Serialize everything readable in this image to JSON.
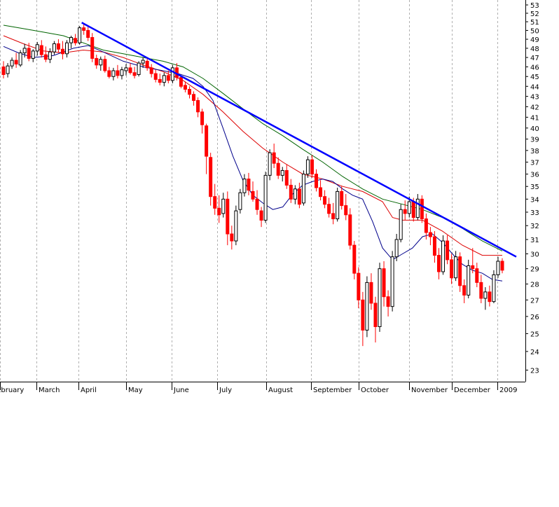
{
  "chart_data": {
    "type": "candlestick",
    "x_ticks": [
      "February",
      "March",
      "April",
      "May",
      "June",
      "July",
      "August",
      "September",
      "October",
      "November",
      "December",
      "2009"
    ],
    "y_ticks": [
      23,
      24,
      25,
      26,
      27,
      28,
      29,
      30,
      31,
      32,
      33,
      34,
      35,
      36,
      37,
      38,
      39,
      40,
      41,
      42,
      43,
      44,
      45,
      46,
      47,
      48,
      49,
      50,
      51,
      52,
      53
    ],
    "ylim": [
      22.4,
      53.6
    ],
    "y_scale": "log",
    "grid": "vertical dotted at month boundaries",
    "colors": {
      "up": "#000000",
      "down": "#ff0000",
      "trendline": "#0000ff",
      "ma_short": "#00008b",
      "ma_mid": "#dd0000",
      "ma_long": "#006400"
    },
    "candles": [
      [
        46.0,
        46.6,
        44.8,
        45.2
      ],
      [
        45.3,
        46.4,
        44.9,
        46.1
      ],
      [
        46.1,
        47.0,
        45.8,
        46.7
      ],
      [
        46.7,
        47.5,
        45.9,
        46.3
      ],
      [
        46.2,
        47.8,
        46.0,
        47.5
      ],
      [
        47.5,
        48.5,
        47.0,
        48.0
      ],
      [
        48.0,
        48.6,
        46.6,
        46.9
      ],
      [
        46.9,
        47.9,
        46.5,
        47.7
      ],
      [
        47.7,
        48.7,
        47.2,
        48.4
      ],
      [
        48.3,
        48.9,
        47.0,
        47.3
      ],
      [
        47.3,
        48.2,
        46.5,
        46.8
      ],
      [
        46.8,
        48.0,
        46.4,
        47.6
      ],
      [
        47.6,
        48.8,
        47.3,
        48.5
      ],
      [
        48.5,
        49.0,
        47.5,
        47.9
      ],
      [
        47.9,
        48.8,
        46.8,
        47.4
      ],
      [
        47.4,
        48.9,
        47.0,
        48.6
      ],
      [
        48.6,
        49.4,
        48.0,
        49.2
      ],
      [
        49.1,
        49.6,
        48.3,
        48.6
      ],
      [
        48.6,
        50.5,
        48.4,
        50.3
      ],
      [
        50.3,
        50.8,
        49.5,
        50.0
      ],
      [
        50.0,
        50.4,
        48.8,
        49.2
      ],
      [
        49.2,
        49.7,
        46.5,
        46.9
      ],
      [
        46.9,
        47.3,
        45.8,
        46.2
      ],
      [
        46.2,
        47.1,
        45.6,
        46.8
      ],
      [
        46.8,
        47.2,
        45.4,
        45.6
      ],
      [
        45.6,
        46.0,
        44.8,
        45.0
      ],
      [
        45.0,
        45.9,
        44.6,
        45.6
      ],
      [
        45.6,
        46.2,
        44.8,
        45.1
      ],
      [
        45.1,
        46.0,
        44.7,
        45.7
      ],
      [
        45.6,
        46.3,
        45.1,
        45.9
      ],
      [
        45.9,
        46.4,
        45.2,
        45.4
      ],
      [
        45.4,
        46.0,
        44.8,
        45.1
      ],
      [
        45.2,
        46.6,
        45.0,
        46.4
      ],
      [
        46.4,
        47.0,
        45.9,
        46.7
      ],
      [
        46.6,
        47.0,
        45.6,
        45.9
      ],
      [
        45.9,
        46.3,
        44.9,
        45.3
      ],
      [
        45.3,
        45.7,
        44.4,
        44.7
      ],
      [
        44.7,
        45.3,
        44.1,
        44.4
      ],
      [
        44.4,
        45.4,
        44.0,
        45.1
      ],
      [
        45.1,
        45.6,
        44.3,
        44.6
      ],
      [
        44.6,
        46.2,
        44.3,
        45.9
      ],
      [
        45.9,
        46.4,
        44.6,
        44.9
      ],
      [
        44.9,
        45.1,
        43.8,
        44.0
      ],
      [
        44.1,
        44.5,
        43.4,
        43.7
      ],
      [
        43.7,
        44.0,
        42.8,
        43.2
      ],
      [
        43.2,
        43.5,
        42.1,
        42.6
      ],
      [
        42.6,
        42.9,
        41.0,
        41.5
      ],
      [
        41.5,
        41.8,
        39.5,
        40.3
      ],
      [
        40.2,
        40.4,
        36.0,
        37.5
      ],
      [
        37.4,
        37.8,
        33.5,
        34.2
      ],
      [
        34.2,
        35.2,
        32.8,
        33.3
      ],
      [
        33.3,
        34.3,
        32.2,
        32.8
      ],
      [
        32.9,
        34.5,
        32.6,
        34.0
      ],
      [
        34.0,
        34.6,
        30.6,
        31.4
      ],
      [
        31.4,
        32.0,
        30.3,
        30.9
      ],
      [
        30.9,
        33.5,
        30.6,
        33.1
      ],
      [
        33.2,
        34.8,
        32.9,
        34.5
      ],
      [
        34.5,
        36.0,
        34.2,
        35.6
      ],
      [
        35.6,
        36.1,
        34.3,
        34.7
      ],
      [
        34.6,
        35.4,
        33.8,
        34.0
      ],
      [
        34.0,
        34.7,
        32.8,
        33.2
      ],
      [
        33.1,
        33.4,
        31.9,
        32.4
      ],
      [
        32.4,
        36.2,
        32.2,
        35.9
      ],
      [
        35.9,
        38.1,
        35.5,
        37.8
      ],
      [
        37.8,
        38.6,
        36.5,
        36.9
      ],
      [
        36.9,
        37.4,
        35.6,
        35.9
      ],
      [
        35.9,
        36.6,
        35.4,
        36.3
      ],
      [
        36.3,
        36.8,
        34.8,
        35.1
      ],
      [
        35.1,
        35.6,
        33.7,
        34.0
      ],
      [
        34.0,
        35.1,
        33.6,
        34.8
      ],
      [
        34.8,
        35.3,
        33.3,
        33.6
      ],
      [
        33.7,
        36.3,
        33.5,
        36.0
      ],
      [
        36.0,
        37.5,
        35.7,
        37.2
      ],
      [
        37.2,
        37.6,
        35.7,
        36.0
      ],
      [
        36.0,
        36.4,
        34.6,
        34.9
      ],
      [
        34.9,
        35.5,
        33.9,
        34.2
      ],
      [
        34.2,
        34.7,
        33.3,
        33.6
      ],
      [
        33.6,
        34.1,
        32.6,
        32.9
      ],
      [
        32.9,
        33.7,
        32.1,
        32.5
      ],
      [
        32.5,
        34.9,
        32.3,
        34.6
      ],
      [
        34.6,
        35.0,
        33.2,
        33.5
      ],
      [
        33.5,
        34.4,
        32.4,
        32.8
      ],
      [
        32.8,
        33.3,
        30.3,
        30.6
      ],
      [
        30.6,
        30.9,
        28.3,
        28.7
      ],
      [
        28.7,
        29.1,
        26.5,
        27.0
      ],
      [
        27.0,
        27.5,
        24.3,
        25.2
      ],
      [
        25.2,
        28.5,
        24.8,
        28.1
      ],
      [
        28.1,
        28.7,
        26.4,
        26.8
      ],
      [
        26.8,
        27.2,
        24.5,
        25.4
      ],
      [
        25.4,
        29.4,
        25.1,
        29.0
      ],
      [
        29.0,
        29.5,
        26.6,
        27.2
      ],
      [
        27.2,
        27.6,
        26.0,
        26.6
      ],
      [
        26.6,
        30.2,
        26.3,
        29.8
      ],
      [
        29.8,
        31.4,
        29.5,
        31.0
      ],
      [
        31.0,
        33.6,
        30.8,
        33.2
      ],
      [
        33.2,
        33.9,
        32.4,
        32.9
      ],
      [
        32.9,
        34.2,
        32.6,
        33.8
      ],
      [
        33.8,
        34.1,
        32.3,
        32.6
      ],
      [
        32.6,
        34.4,
        32.4,
        34.0
      ],
      [
        34.0,
        34.3,
        32.2,
        32.5
      ],
      [
        32.5,
        32.9,
        31.0,
        31.5
      ],
      [
        31.5,
        31.9,
        30.6,
        31.2
      ],
      [
        31.2,
        31.6,
        29.4,
        29.9
      ],
      [
        29.9,
        30.4,
        28.3,
        28.8
      ],
      [
        28.8,
        31.3,
        28.6,
        30.9
      ],
      [
        30.9,
        31.3,
        29.3,
        29.6
      ],
      [
        29.6,
        30.0,
        28.0,
        28.4
      ],
      [
        28.4,
        30.2,
        28.2,
        29.8
      ],
      [
        29.8,
        30.1,
        27.5,
        27.9
      ],
      [
        27.9,
        28.3,
        26.8,
        27.3
      ],
      [
        27.3,
        29.6,
        27.1,
        29.2
      ],
      [
        29.2,
        30.4,
        28.7,
        29.0
      ],
      [
        29.0,
        29.4,
        27.8,
        28.1
      ],
      [
        28.1,
        28.6,
        26.8,
        27.1
      ],
      [
        27.1,
        27.8,
        26.4,
        27.5
      ],
      [
        27.5,
        27.9,
        26.6,
        26.9
      ],
      [
        26.9,
        28.9,
        26.8,
        28.6
      ],
      [
        28.6,
        29.8,
        28.4,
        29.5
      ],
      [
        29.5,
        29.7,
        28.7,
        28.9
      ]
    ],
    "trendline": {
      "from": [
        50.9,
        0.1568
      ],
      "to": [
        29.8,
        1.0
      ]
    },
    "ma_short": [
      [
        0.0,
        48.2
      ],
      [
        0.03,
        47.5
      ],
      [
        0.06,
        47.0
      ],
      [
        0.1,
        47.2
      ],
      [
        0.14,
        48.0
      ],
      [
        0.17,
        48.3
      ],
      [
        0.2,
        47.6
      ],
      [
        0.24,
        46.6
      ],
      [
        0.28,
        46.0
      ],
      [
        0.32,
        45.6
      ],
      [
        0.35,
        45.3
      ],
      [
        0.38,
        44.8
      ],
      [
        0.4,
        44.0
      ],
      [
        0.42,
        42.6
      ],
      [
        0.44,
        40.0
      ],
      [
        0.46,
        37.5
      ],
      [
        0.48,
        35.5
      ],
      [
        0.5,
        34.3
      ],
      [
        0.52,
        33.7
      ],
      [
        0.54,
        33.2
      ],
      [
        0.56,
        33.4
      ],
      [
        0.58,
        34.4
      ],
      [
        0.6,
        35.1
      ],
      [
        0.62,
        35.4
      ],
      [
        0.64,
        35.6
      ],
      [
        0.66,
        35.4
      ],
      [
        0.68,
        34.8
      ],
      [
        0.7,
        34.3
      ],
      [
        0.72,
        34.0
      ],
      [
        0.74,
        32.3
      ],
      [
        0.76,
        30.4
      ],
      [
        0.78,
        29.6
      ],
      [
        0.8,
        30.0
      ],
      [
        0.82,
        30.4
      ],
      [
        0.84,
        31.2
      ],
      [
        0.86,
        31.4
      ],
      [
        0.88,
        30.8
      ],
      [
        0.9,
        30.0
      ],
      [
        0.92,
        29.3
      ],
      [
        0.94,
        28.9
      ],
      [
        0.96,
        28.7
      ],
      [
        0.98,
        28.3
      ],
      [
        1.0,
        28.2
      ]
    ],
    "ma_mid": [
      [
        0.0,
        49.4
      ],
      [
        0.04,
        48.5
      ],
      [
        0.08,
        47.7
      ],
      [
        0.12,
        47.5
      ],
      [
        0.16,
        47.8
      ],
      [
        0.2,
        47.6
      ],
      [
        0.24,
        47.0
      ],
      [
        0.28,
        46.2
      ],
      [
        0.32,
        45.5
      ],
      [
        0.36,
        44.6
      ],
      [
        0.4,
        43.2
      ],
      [
        0.44,
        41.5
      ],
      [
        0.48,
        39.7
      ],
      [
        0.52,
        38.2
      ],
      [
        0.56,
        37.0
      ],
      [
        0.6,
        36.0
      ],
      [
        0.64,
        35.6
      ],
      [
        0.68,
        35.0
      ],
      [
        0.72,
        34.6
      ],
      [
        0.76,
        33.8
      ],
      [
        0.78,
        32.6
      ],
      [
        0.8,
        32.4
      ],
      [
        0.84,
        32.4
      ],
      [
        0.88,
        31.6
      ],
      [
        0.92,
        30.6
      ],
      [
        0.96,
        29.9
      ],
      [
        1.0,
        29.9
      ]
    ],
    "ma_long": [
      [
        0.0,
        50.6
      ],
      [
        0.04,
        50.2
      ],
      [
        0.08,
        49.8
      ],
      [
        0.12,
        49.4
      ],
      [
        0.16,
        48.6
      ],
      [
        0.2,
        47.8
      ],
      [
        0.24,
        47.4
      ],
      [
        0.28,
        47.0
      ],
      [
        0.32,
        46.6
      ],
      [
        0.36,
        46.0
      ],
      [
        0.4,
        44.8
      ],
      [
        0.44,
        43.3
      ],
      [
        0.48,
        41.8
      ],
      [
        0.52,
        40.4
      ],
      [
        0.56,
        39.3
      ],
      [
        0.6,
        38.1
      ],
      [
        0.64,
        37.0
      ],
      [
        0.68,
        35.8
      ],
      [
        0.72,
        34.8
      ],
      [
        0.76,
        34.0
      ],
      [
        0.8,
        33.6
      ],
      [
        0.84,
        33.2
      ],
      [
        0.88,
        32.6
      ],
      [
        0.92,
        31.8
      ],
      [
        0.96,
        30.9
      ],
      [
        1.0,
        30.2
      ]
    ]
  }
}
